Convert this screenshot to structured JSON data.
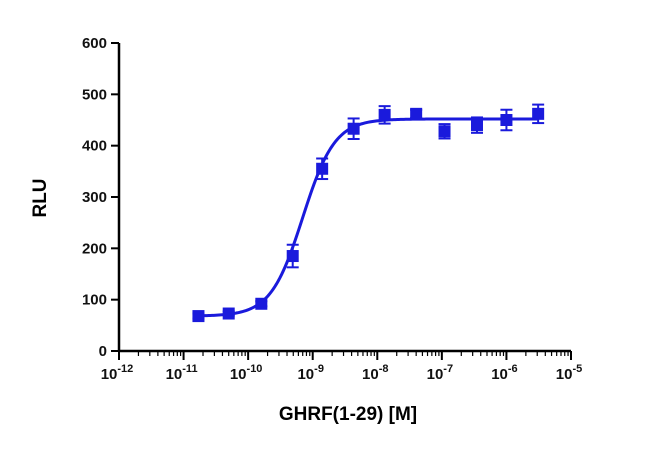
{
  "chart_data": {
    "type": "scatter",
    "xlabel": "GHRF(1-29) [M]",
    "ylabel": "RLU",
    "x_scale": "log10",
    "xlim": [
      1e-12,
      1e-05
    ],
    "ylim": [
      0,
      600
    ],
    "x_tick_labels": [
      {
        "base": "10",
        "exp": "-12"
      },
      {
        "base": "10",
        "exp": "-11"
      },
      {
        "base": "10",
        "exp": "-10"
      },
      {
        "base": "10",
        "exp": "-9"
      },
      {
        "base": "10",
        "exp": "-8"
      },
      {
        "base": "10",
        "exp": "-7"
      },
      {
        "base": "10",
        "exp": "-6"
      },
      {
        "base": "10",
        "exp": "-5"
      }
    ],
    "y_tick_labels": [
      "0",
      "100",
      "200",
      "300",
      "400",
      "500",
      "600"
    ],
    "grid": false,
    "marker": "square",
    "color": "#1a1adc",
    "series": [
      {
        "x": [
          1.7e-11,
          5e-11,
          1.6e-10,
          4.9e-10,
          1.4e-09,
          4.3e-09,
          1.3e-08,
          4e-08,
          1.1e-07,
          3.5e-07,
          1e-06,
          3.1e-06
        ],
        "y": [
          68,
          73,
          92,
          185,
          355,
          433,
          460,
          462,
          428,
          440,
          450,
          462
        ],
        "error": [
          5,
          4,
          5,
          22,
          20,
          20,
          17,
          8,
          14,
          15,
          20,
          18
        ]
      }
    ],
    "fit": {
      "type": "sigmoid-dose-response",
      "bottom": 68,
      "top": 452,
      "ec50": 7e-10,
      "hill": 1.75
    }
  }
}
